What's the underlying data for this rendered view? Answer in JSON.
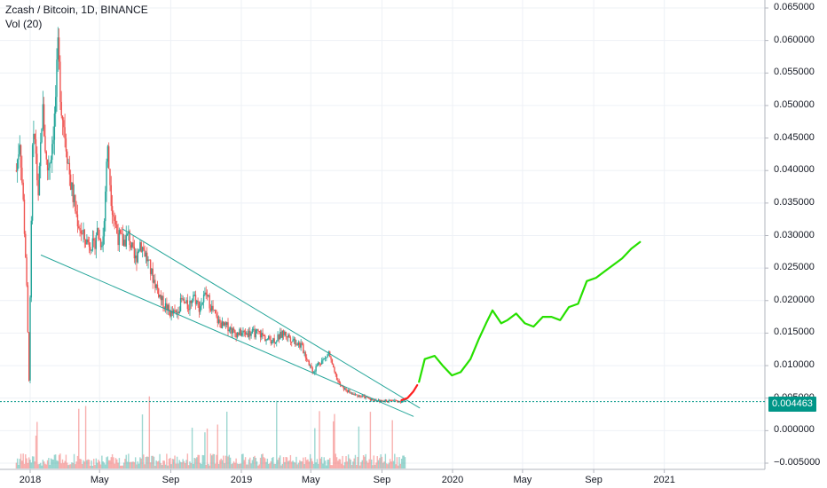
{
  "legend": {
    "title": "Zcash / Bitcoin, 1D, BINANCE",
    "volume": "Vol (20)"
  },
  "price_badge": "0.004463",
  "colors": {
    "up": "#26a69a",
    "down": "#ef5350",
    "channel": "#26a69a",
    "projection_green": "#27e000",
    "projection_red": "#ff1f1f",
    "grid": "#eef1f6"
  },
  "chart_data": {
    "type": "line",
    "title": "Zcash / Bitcoin, 1D, BINANCE",
    "ylim": [
      -0.005,
      0.066
    ],
    "y_ticks": [
      "0.065000",
      "0.060000",
      "0.055000",
      "0.050000",
      "0.045000",
      "0.040000",
      "0.035000",
      "0.030000",
      "0.025000",
      "0.020000",
      "0.015000",
      "0.010000",
      "0.005000",
      "0.000000",
      "−0.005000"
    ],
    "x_ticks": [
      "2018",
      "May",
      "Sep",
      "2019",
      "May",
      "Sep",
      "2020",
      "May",
      "Sep",
      "2021"
    ],
    "last_price": 0.004463,
    "series": [
      {
        "kind": "close",
        "x": [
          "2017-12-08",
          "2017-12-14",
          "2017-12-20",
          "2017-12-25",
          "2017-12-30",
          "2018-01-05",
          "2018-01-10",
          "2018-01-15",
          "2018-01-22",
          "2018-01-30",
          "2018-02-05",
          "2018-02-12",
          "2018-02-18",
          "2018-02-24",
          "2018-03-03",
          "2018-03-12",
          "2018-03-22",
          "2018-04-01",
          "2018-04-10",
          "2018-04-16",
          "2018-04-21",
          "2018-04-26",
          "2018-05-02",
          "2018-05-08",
          "2018-05-14",
          "2018-05-22",
          "2018-06-01",
          "2018-06-10",
          "2018-06-20",
          "2018-07-01",
          "2018-07-10",
          "2018-07-20",
          "2018-07-30",
          "2018-08-08",
          "2018-08-16",
          "2018-08-24",
          "2018-09-01",
          "2018-09-10",
          "2018-09-20",
          "2018-10-01",
          "2018-10-10",
          "2018-10-20",
          "2018-11-01",
          "2018-11-10",
          "2018-11-20",
          "2018-12-01",
          "2018-12-10",
          "2018-12-20",
          "2019-01-01",
          "2019-01-15",
          "2019-02-01",
          "2019-02-15",
          "2019-03-01",
          "2019-03-15",
          "2019-04-01",
          "2019-04-15",
          "2019-04-25",
          "2019-05-05",
          "2019-05-15",
          "2019-05-25",
          "2019-06-01",
          "2019-06-10",
          "2019-06-20",
          "2019-07-01",
          "2019-07-15",
          "2019-08-01",
          "2019-08-15",
          "2019-09-01",
          "2019-09-15",
          "2019-09-25",
          "2019-10-05",
          "2019-10-12"
        ],
        "y": [
          0.04,
          0.045,
          0.035,
          0.025,
          0.008,
          0.043,
          0.045,
          0.035,
          0.05,
          0.04,
          0.042,
          0.048,
          0.058,
          0.05,
          0.045,
          0.038,
          0.033,
          0.03,
          0.029,
          0.029,
          0.028,
          0.031,
          0.029,
          0.03,
          0.044,
          0.035,
          0.03,
          0.029,
          0.03,
          0.026,
          0.029,
          0.027,
          0.024,
          0.022,
          0.02,
          0.019,
          0.018,
          0.018,
          0.02,
          0.019,
          0.021,
          0.019,
          0.021,
          0.019,
          0.017,
          0.016,
          0.016,
          0.015,
          0.015,
          0.015,
          0.015,
          0.014,
          0.014,
          0.015,
          0.014,
          0.013,
          0.011,
          0.009,
          0.0105,
          0.011,
          0.012,
          0.009,
          0.007,
          0.0062,
          0.0055,
          0.0052,
          0.0048,
          0.0045,
          0.0046,
          0.0046,
          0.0045,
          0.0047
        ]
      },
      {
        "kind": "channel_upper",
        "x": [
          "2018-06-10",
          "2019-11-05"
        ],
        "y": [
          0.031,
          0.0035
        ]
      },
      {
        "kind": "channel_lower",
        "x": [
          "2018-01-20",
          "2019-10-25"
        ],
        "y": [
          0.027,
          0.0022
        ]
      },
      {
        "kind": "projection_red",
        "x": [
          "2019-10-05",
          "2019-10-15",
          "2019-10-25",
          "2019-11-01"
        ],
        "y": [
          0.0047,
          0.005,
          0.006,
          0.007
        ]
      },
      {
        "kind": "projection_green",
        "x": [
          "2019-11-04",
          "2019-11-14",
          "2019-12-01",
          "2019-12-15",
          "2019-12-31",
          "2020-01-15",
          "2020-02-01",
          "2020-02-15",
          "2020-02-28",
          "2020-03-10",
          "2020-03-25",
          "2020-04-05",
          "2020-04-20",
          "2020-05-05",
          "2020-05-20",
          "2020-06-05",
          "2020-06-20",
          "2020-07-05",
          "2020-07-20",
          "2020-08-05",
          "2020-08-20",
          "2020-09-05",
          "2020-09-20",
          "2020-10-05",
          "2020-10-20",
          "2020-11-05",
          "2020-11-20"
        ],
        "y": [
          0.0075,
          0.011,
          0.0115,
          0.01,
          0.0085,
          0.009,
          0.011,
          0.014,
          0.0165,
          0.0185,
          0.0165,
          0.017,
          0.018,
          0.0165,
          0.016,
          0.0175,
          0.0175,
          0.017,
          0.019,
          0.0195,
          0.023,
          0.0235,
          0.0245,
          0.0255,
          0.0265,
          0.028,
          0.029
        ]
      }
    ]
  }
}
